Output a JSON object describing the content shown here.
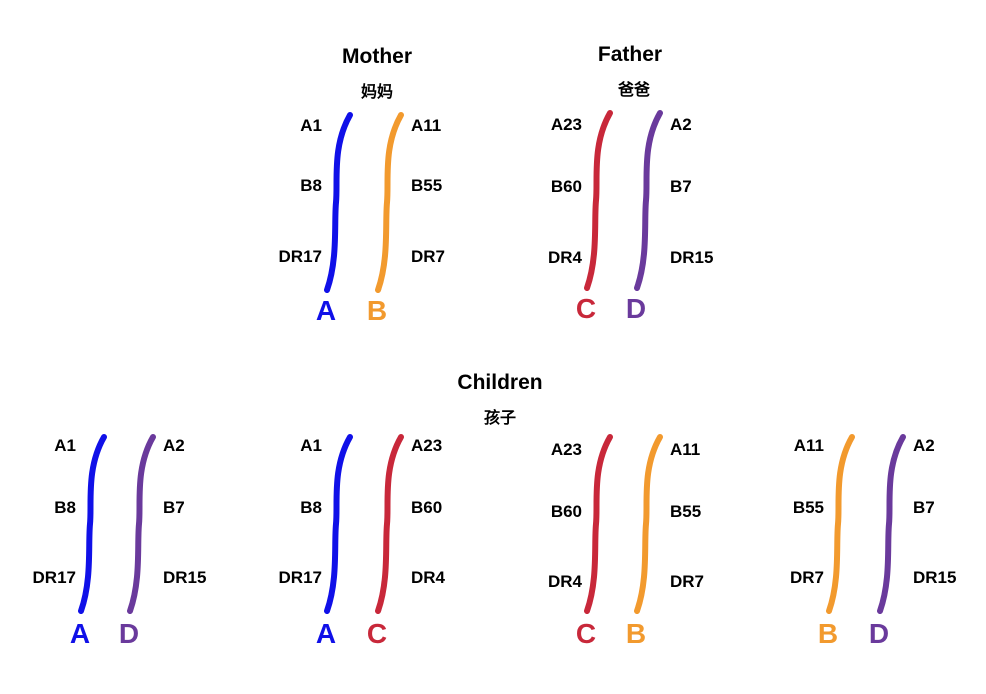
{
  "colors": {
    "A": "#1010e8",
    "B": "#f29a2e",
    "C": "#c8283a",
    "D": "#6a3a9c"
  },
  "parents": {
    "mother": {
      "title": "Mother",
      "subtitle": "妈妈"
    },
    "father": {
      "title": "Father",
      "subtitle": "爸爸"
    }
  },
  "children": {
    "title": "Children",
    "subtitle": "孩子"
  },
  "chromosomes": {
    "A": [
      "A1",
      "B8",
      "DR17"
    ],
    "B": [
      "A11",
      "B55",
      "DR7"
    ],
    "C": [
      "A23",
      "B60",
      "DR4"
    ],
    "D": [
      "A2",
      "B7",
      "DR15"
    ]
  },
  "pairs": [
    {
      "id": "mother",
      "left": "A",
      "right": "B"
    },
    {
      "id": "father",
      "left": "C",
      "right": "D"
    },
    {
      "id": "child-1",
      "left": "A",
      "right": "D"
    },
    {
      "id": "child-2",
      "left": "A",
      "right": "C"
    },
    {
      "id": "child-3",
      "left": "C",
      "right": "B"
    },
    {
      "id": "child-4",
      "left": "B",
      "right": "D"
    }
  ]
}
